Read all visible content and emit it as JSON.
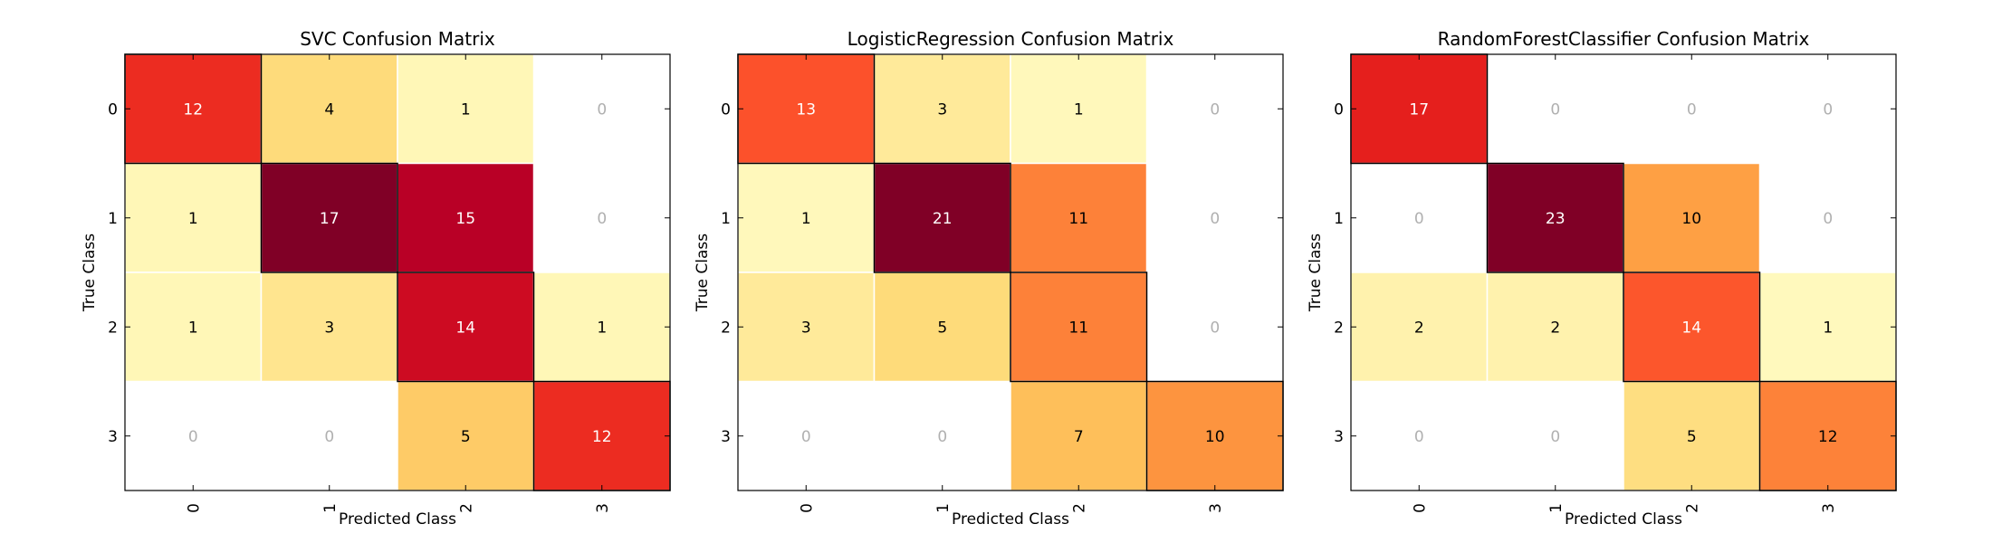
{
  "chart_data": [
    {
      "type": "heatmap",
      "title": "SVC Confusion Matrix",
      "xlabel": "Predicted Class",
      "ylabel": "True Class",
      "x_ticks": [
        "0",
        "1",
        "2",
        "3"
      ],
      "y_ticks": [
        "0",
        "1",
        "2",
        "3"
      ],
      "values": [
        [
          12,
          4,
          1,
          0
        ],
        [
          1,
          17,
          15,
          0
        ],
        [
          1,
          3,
          14,
          1
        ],
        [
          0,
          0,
          5,
          12
        ]
      ],
      "colormap": "YlOrRd",
      "diagonal_outlined": true
    },
    {
      "type": "heatmap",
      "title": "LogisticRegression Confusion Matrix",
      "xlabel": "Predicted Class",
      "ylabel": "True Class",
      "x_ticks": [
        "0",
        "1",
        "2",
        "3"
      ],
      "y_ticks": [
        "0",
        "1",
        "2",
        "3"
      ],
      "values": [
        [
          13,
          3,
          1,
          0
        ],
        [
          1,
          21,
          11,
          0
        ],
        [
          3,
          5,
          11,
          0
        ],
        [
          0,
          0,
          7,
          10
        ]
      ],
      "colormap": "YlOrRd",
      "diagonal_outlined": true
    },
    {
      "type": "heatmap",
      "title": "RandomForestClassifier Confusion Matrix",
      "xlabel": "Predicted Class",
      "ylabel": "True Class",
      "x_ticks": [
        "0",
        "1",
        "2",
        "3"
      ],
      "y_ticks": [
        "0",
        "1",
        "2",
        "3"
      ],
      "values": [
        [
          17,
          0,
          0,
          0
        ],
        [
          0,
          23,
          10,
          0
        ],
        [
          2,
          2,
          14,
          1
        ],
        [
          0,
          0,
          5,
          12
        ]
      ],
      "colormap": "YlOrRd",
      "diagonal_outlined": true
    }
  ],
  "colors": {
    "zero_text": "#b0b0b0",
    "light_text": "#ffffff",
    "dark_text": "#000000",
    "cell_separator": "#ffffff",
    "diagonal_outline": "#000000"
  }
}
